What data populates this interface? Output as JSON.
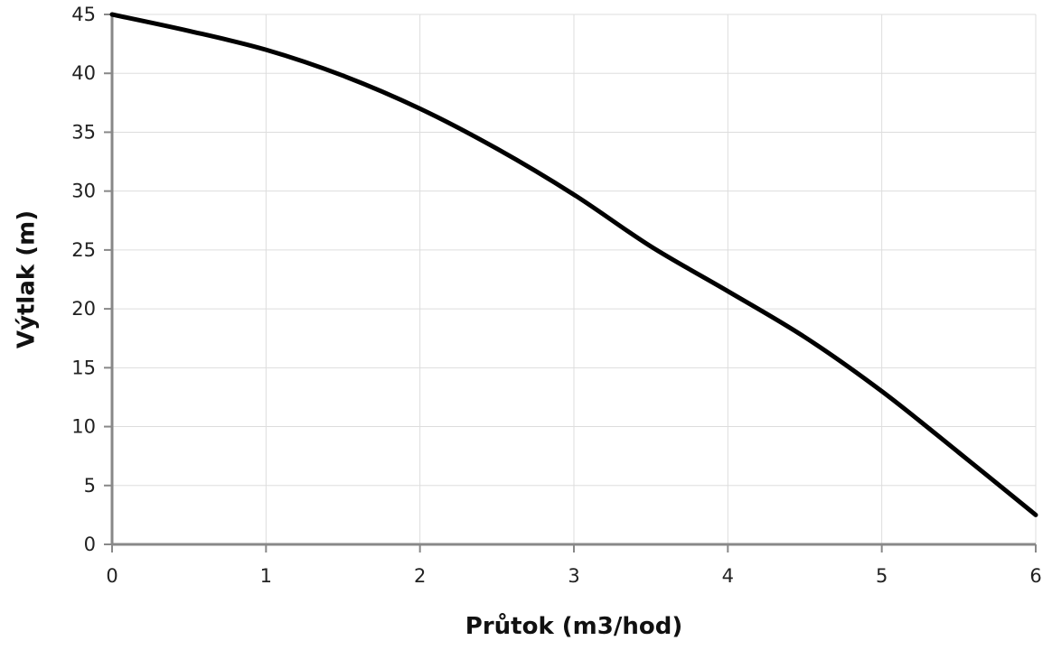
{
  "chart_data": {
    "type": "line",
    "title": "",
    "xlabel": "Průtok (m3/hod)",
    "ylabel": "Výtlak (m)",
    "xlim": [
      0,
      6
    ],
    "ylim": [
      0,
      45
    ],
    "x_ticks": [
      0,
      1,
      2,
      3,
      4,
      5,
      6
    ],
    "y_ticks": [
      0,
      5,
      10,
      15,
      20,
      25,
      30,
      35,
      40,
      45
    ],
    "grid": true,
    "legend": "none",
    "series": [
      {
        "color": "#000000",
        "x": [
          0,
          0.5,
          1,
          1.5,
          2,
          2.5,
          3,
          3.5,
          4,
          4.5,
          5,
          5.5,
          6
        ],
        "y": [
          45,
          43.6,
          42,
          39.8,
          37,
          33.6,
          29.7,
          25.3,
          21.5,
          17.6,
          13,
          7.8,
          2.5
        ]
      }
    ]
  }
}
